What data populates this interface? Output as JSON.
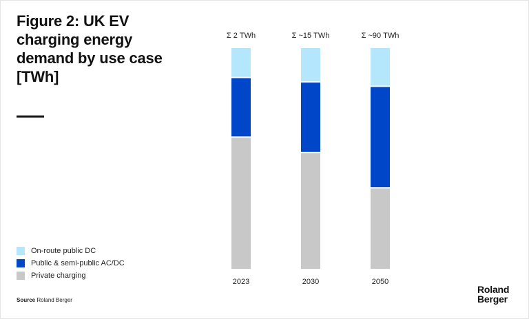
{
  "title": "Figure 2: UK EV charging energy demand by use case [TWh]",
  "source_label": "Source",
  "source_text": "Roland Berger",
  "logo_line1": "Roland",
  "logo_line2": "Berger",
  "chart_data": {
    "type": "bar",
    "stacked": true,
    "categories": [
      "2023",
      "2030",
      "2050"
    ],
    "totals": [
      "Σ 2 TWh",
      "Σ ~15 TWh",
      "Σ ~90 TWh"
    ],
    "series": [
      {
        "name": "Private charging",
        "color": "#c8c8c8",
        "values": [
          60,
          53,
          37
        ]
      },
      {
        "name": "Public & semi-public AC/DC",
        "color": "#0046c8",
        "values": [
          27,
          32,
          46
        ]
      },
      {
        "name": "On-route public DC",
        "color": "#b4e6fc",
        "values": [
          13,
          15,
          17
        ]
      }
    ],
    "ylim": [
      0,
      100
    ],
    "legend": [
      {
        "label": "On-route public DC",
        "color": "#b4e6fc"
      },
      {
        "label": "Public & semi-public AC/DC",
        "color": "#0046c8"
      },
      {
        "label": "Private charging",
        "color": "#c8c8c8"
      }
    ]
  }
}
